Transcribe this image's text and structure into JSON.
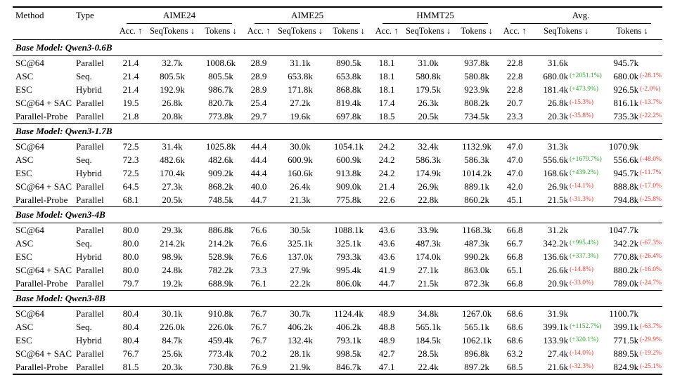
{
  "colors": {
    "positive": "#2fa62f",
    "negative": "#e8392e"
  },
  "table": {
    "header": {
      "method": "Method",
      "type": "Type"
    },
    "groups": [
      {
        "label": "AIME24",
        "sub": [
          "Acc. ↑",
          "SeqTokens ↓",
          "Tokens ↓"
        ]
      },
      {
        "label": "AIME25",
        "sub": [
          "Acc. ↑",
          "SeqTokens ↓",
          "Tokens ↓"
        ]
      },
      {
        "label": "HMMT25",
        "sub": [
          "Acc. ↑",
          "SeqTokens ↓",
          "Tokens ↓"
        ]
      },
      {
        "label": "Avg.",
        "sub": [
          "Acc. ↑",
          "SeqTokens ↓",
          "Tokens ↓"
        ]
      }
    ],
    "sections": [
      {
        "title": "Base Model: Qwen3-0.6B",
        "rows": [
          {
            "method": "SC@64",
            "type": "Parallel",
            "cells": [
              "21.4",
              "32.7k",
              "1008.6k",
              "28.9",
              "31.1k",
              "890.5k",
              "18.1",
              "31.0k",
              "937.8k",
              "22.8",
              "31.6k",
              "945.7k"
            ],
            "avg_seq_pct": "",
            "avg_tok_pct": ""
          },
          {
            "method": "ASC",
            "type": "Seq.",
            "cells": [
              "21.4",
              "805.5k",
              "805.5k",
              "28.9",
              "653.8k",
              "653.8k",
              "18.1",
              "580.8k",
              "580.8k",
              "22.8",
              "680.0k",
              "680.0k"
            ],
            "avg_seq_pct": "(+2051.1%)",
            "avg_tok_pct": "(-28.1%)"
          },
          {
            "method": "ESC",
            "type": "Hybrid",
            "cells": [
              "21.4",
              "192.9k",
              "986.7k",
              "28.9",
              "171.8k",
              "868.8k",
              "18.1",
              "179.5k",
              "923.9k",
              "22.8",
              "181.4k",
              "926.5k"
            ],
            "avg_seq_pct": "(+473.9%)",
            "avg_tok_pct": "(-2.0%)"
          },
          {
            "method": "SC@64 + SAC",
            "type": "Parallel",
            "cells": [
              "19.5",
              "26.8k",
              "820.7k",
              "25.4",
              "27.2k",
              "819.4k",
              "17.4",
              "26.3k",
              "808.2k",
              "20.7",
              "26.8k",
              "816.1k"
            ],
            "avg_seq_pct": "(-15.3%)",
            "avg_tok_pct": "(-13.7%)"
          },
          {
            "method": "Parallel-Probe",
            "type": "Parallel",
            "cells": [
              "21.8",
              "20.8k",
              "773.8k",
              "29.7",
              "19.6k",
              "697.8k",
              "18.5",
              "20.5k",
              "734.5k",
              "23.3",
              "20.3k",
              "735.3k"
            ],
            "avg_seq_pct": "(-35.8%)",
            "avg_tok_pct": "(-22.2%)"
          }
        ]
      },
      {
        "title": "Base Model: Qwen3-1.7B",
        "rows": [
          {
            "method": "SC@64",
            "type": "Parallel",
            "cells": [
              "72.5",
              "31.4k",
              "1025.8k",
              "44.4",
              "30.0k",
              "1054.1k",
              "24.2",
              "32.4k",
              "1132.9k",
              "47.0",
              "31.3k",
              "1070.9k"
            ],
            "avg_seq_pct": "",
            "avg_tok_pct": ""
          },
          {
            "method": "ASC",
            "type": "Seq.",
            "cells": [
              "72.3",
              "482.6k",
              "482.6k",
              "44.4",
              "600.9k",
              "600.9k",
              "24.2",
              "586.3k",
              "586.3k",
              "47.0",
              "556.6k",
              "556.6k"
            ],
            "avg_seq_pct": "(+1679.7%)",
            "avg_tok_pct": "(-48.0%)"
          },
          {
            "method": "ESC",
            "type": "Hybrid",
            "cells": [
              "72.5",
              "170.4k",
              "909.2k",
              "44.4",
              "160.6k",
              "913.8k",
              "24.2",
              "174.9k",
              "1014.2k",
              "47.0",
              "168.6k",
              "945.7k"
            ],
            "avg_seq_pct": "(+439.2%)",
            "avg_tok_pct": "(-11.7%)"
          },
          {
            "method": "SC@64 + SAC",
            "type": "Parallel",
            "cells": [
              "64.5",
              "27.3k",
              "868.2k",
              "40.0",
              "26.4k",
              "909.0k",
              "21.4",
              "26.9k",
              "889.1k",
              "42.0",
              "26.9k",
              "888.8k"
            ],
            "avg_seq_pct": "(-14.1%)",
            "avg_tok_pct": "(-17.0%)"
          },
          {
            "method": "Parallel-Probe",
            "type": "Parallel",
            "cells": [
              "68.1",
              "20.5k",
              "748.5k",
              "44.7",
              "21.3k",
              "775.8k",
              "22.6",
              "22.8k",
              "860.2k",
              "45.1",
              "21.5k",
              "794.8k"
            ],
            "avg_seq_pct": "(-31.3%)",
            "avg_tok_pct": "(-25.8%)"
          }
        ]
      },
      {
        "title": "Base Model: Qwen3-4B",
        "rows": [
          {
            "method": "SC@64",
            "type": "Parallel",
            "cells": [
              "80.0",
              "29.3k",
              "886.8k",
              "76.6",
              "30.5k",
              "1088.1k",
              "43.6",
              "33.9k",
              "1168.3k",
              "66.8",
              "31.2k",
              "1047.7k"
            ],
            "avg_seq_pct": "",
            "avg_tok_pct": ""
          },
          {
            "method": "ASC",
            "type": "Seq.",
            "cells": [
              "80.0",
              "214.2k",
              "214.2k",
              "76.6",
              "325.1k",
              "325.1k",
              "43.6",
              "487.3k",
              "487.3k",
              "66.7",
              "342.2k",
              "342.2k"
            ],
            "avg_seq_pct": "(+995.4%)",
            "avg_tok_pct": "(-67.3%)"
          },
          {
            "method": "ESC",
            "type": "Hybrid",
            "cells": [
              "80.0",
              "98.9k",
              "528.9k",
              "76.6",
              "137.0k",
              "793.3k",
              "43.6",
              "174.0k",
              "990.2k",
              "66.8",
              "136.6k",
              "770.8k"
            ],
            "avg_seq_pct": "(+337.3%)",
            "avg_tok_pct": "(-26.4%)"
          },
          {
            "method": "SC@64 + SAC",
            "type": "Parallel",
            "cells": [
              "80.0",
              "24.8k",
              "782.2k",
              "73.3",
              "27.9k",
              "995.4k",
              "41.9",
              "27.1k",
              "863.0k",
              "65.1",
              "26.6k",
              "880.2k"
            ],
            "avg_seq_pct": "(-14.8%)",
            "avg_tok_pct": "(-16.0%)"
          },
          {
            "method": "Parallel-Probe",
            "type": "Parallel",
            "cells": [
              "79.7",
              "19.2k",
              "688.9k",
              "76.1",
              "22.2k",
              "806.0k",
              "44.7",
              "21.5k",
              "872.3k",
              "66.8",
              "20.9k",
              "789.0k"
            ],
            "avg_seq_pct": "(-33.0%)",
            "avg_tok_pct": "(-24.7%)"
          }
        ]
      },
      {
        "title": "Base Model: Qwen3-8B",
        "rows": [
          {
            "method": "SC@64",
            "type": "Parallel",
            "cells": [
              "80.4",
              "30.1k",
              "910.8k",
              "76.7",
              "30.7k",
              "1124.4k",
              "48.9",
              "34.8k",
              "1267.0k",
              "68.6",
              "31.9k",
              "1100.7k"
            ],
            "avg_seq_pct": "",
            "avg_tok_pct": ""
          },
          {
            "method": "ASC",
            "type": "Seq.",
            "cells": [
              "80.4",
              "226.0k",
              "226.0k",
              "76.7",
              "406.2k",
              "406.2k",
              "48.8",
              "565.1k",
              "565.1k",
              "68.6",
              "399.1k",
              "399.1k"
            ],
            "avg_seq_pct": "(+1152.7%)",
            "avg_tok_pct": "(-63.7%)"
          },
          {
            "method": "ESC",
            "type": "Hybrid",
            "cells": [
              "80.4",
              "84.7k",
              "459.4k",
              "76.7",
              "132.4k",
              "793.1k",
              "48.9",
              "184.5k",
              "1062.1k",
              "68.6",
              "133.9k",
              "771.5k"
            ],
            "avg_seq_pct": "(+320.1%)",
            "avg_tok_pct": "(-29.9%)"
          },
          {
            "method": "SC@64 + SAC",
            "type": "Parallel",
            "cells": [
              "76.7",
              "25.6k",
              "773.4k",
              "70.2",
              "28.1k",
              "998.5k",
              "42.7",
              "28.5k",
              "896.8k",
              "63.2",
              "27.4k",
              "889.5k"
            ],
            "avg_seq_pct": "(-14.0%)",
            "avg_tok_pct": "(-19.2%)"
          },
          {
            "method": "Parallel-Probe",
            "type": "Parallel",
            "cells": [
              "81.5",
              "20.3k",
              "730.8k",
              "76.9",
              "21.9k",
              "846.7k",
              "47.1",
              "22.4k",
              "897.2k",
              "68.5",
              "21.6k",
              "824.9k"
            ],
            "avg_seq_pct": "(-32.3%)",
            "avg_tok_pct": "(-25.1%)"
          }
        ]
      }
    ]
  }
}
